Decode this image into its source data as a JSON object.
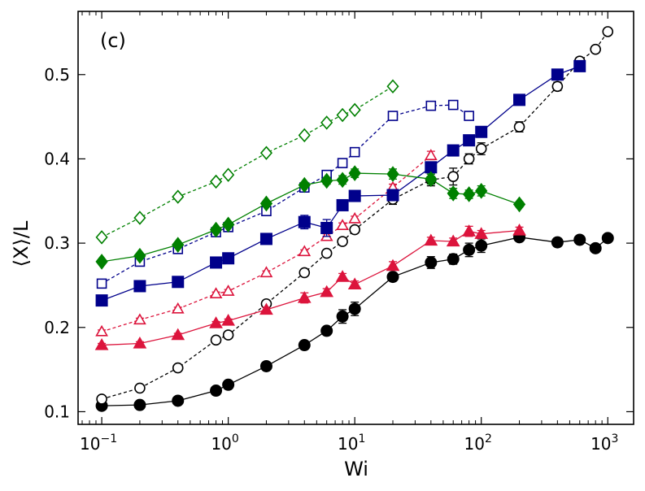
{
  "chart_data": {
    "type": "scatter",
    "panel_label": "(c)",
    "xlabel": "Wi",
    "ylabel": "⟨X⟩/L",
    "xscale": "log",
    "xlim": [
      0.065,
      1600
    ],
    "ylim": [
      0.085,
      0.575
    ],
    "grid": false,
    "legend": "none",
    "xticks": [
      {
        "value": 0.1,
        "base": "10",
        "exp": "−1"
      },
      {
        "value": 1,
        "base": "10",
        "exp": "0"
      },
      {
        "value": 10,
        "base": "10",
        "exp": "1"
      },
      {
        "value": 100,
        "base": "10",
        "exp": "2"
      },
      {
        "value": 1000,
        "base": "10",
        "exp": "3"
      }
    ],
    "yticks": [
      {
        "value": 0.1,
        "label": "0.1"
      },
      {
        "value": 0.2,
        "label": "0.2"
      },
      {
        "value": 0.3,
        "label": "0.3"
      },
      {
        "value": 0.4,
        "label": "0.4"
      },
      {
        "value": 0.5,
        "label": "0.5"
      }
    ],
    "series": [
      {
        "color": "#000000",
        "marker": "circle",
        "filled": true,
        "dashed": false,
        "x": [
          0.1,
          0.2,
          0.4,
          0.8,
          1,
          2,
          4,
          6,
          8,
          10,
          20,
          40,
          60,
          80,
          100,
          200,
          400,
          600,
          800,
          1000
        ],
        "y": [
          0.107,
          0.108,
          0.113,
          0.125,
          0.132,
          0.154,
          0.179,
          0.196,
          0.213,
          0.222,
          0.26,
          0.277,
          0.281,
          0.292,
          0.297,
          0.307,
          0.301,
          0.304,
          0.294,
          0.306
        ],
        "err": [
          0.003,
          0.002,
          0.002,
          0.003,
          0.003,
          0.003,
          0.003,
          0.004,
          0.008,
          0.008,
          0.005,
          0.007,
          0.006,
          0.008,
          0.008,
          0.004,
          0.005,
          0.004,
          0.004,
          0.004
        ]
      },
      {
        "color": "#000000",
        "marker": "circle",
        "filled": false,
        "dashed": true,
        "x": [
          0.1,
          0.2,
          0.4,
          0.8,
          1,
          2,
          4,
          6,
          8,
          10,
          20,
          40,
          60,
          80,
          100,
          200,
          400,
          600,
          800,
          1000
        ],
        "y": [
          0.115,
          0.128,
          0.152,
          0.185,
          0.191,
          0.228,
          0.265,
          0.288,
          0.302,
          0.316,
          0.352,
          0.375,
          0.379,
          0.4,
          0.412,
          0.438,
          0.486,
          0.516,
          0.53,
          0.551
        ],
        "err": [
          0.002,
          0.002,
          0.002,
          0.002,
          0.002,
          0.002,
          0.002,
          0.003,
          0.003,
          0.003,
          0.006,
          0.007,
          0.01,
          0.006,
          0.007,
          0.006,
          0.005,
          0.004,
          0.004,
          0.004
        ]
      },
      {
        "color": "#dc143c",
        "marker": "triangle",
        "filled": true,
        "dashed": false,
        "x": [
          0.1,
          0.2,
          0.4,
          0.8,
          1,
          2,
          4,
          6,
          8,
          10,
          20,
          40,
          60,
          80,
          100,
          200
        ],
        "y": [
          0.179,
          0.181,
          0.191,
          0.205,
          0.208,
          0.221,
          0.235,
          0.242,
          0.26,
          0.251,
          0.273,
          0.303,
          0.302,
          0.314,
          0.311,
          0.315
        ],
        "err": [
          0.002,
          0.002,
          0.002,
          0.002,
          0.002,
          0.003,
          0.006,
          0.004,
          0.004,
          0.004,
          0.005,
          0.004,
          0.004,
          0.006,
          0.004,
          0.004
        ]
      },
      {
        "color": "#dc143c",
        "marker": "triangle",
        "filled": false,
        "dashed": true,
        "x": [
          0.1,
          0.2,
          0.4,
          0.8,
          1,
          2,
          4,
          6,
          8,
          10,
          20,
          40
        ],
        "y": [
          0.195,
          0.209,
          0.222,
          0.24,
          0.243,
          0.265,
          0.29,
          0.308,
          0.321,
          0.329,
          0.366,
          0.404
        ],
        "err": [
          0.002,
          0.002,
          0.002,
          0.002,
          0.002,
          0.002,
          0.002,
          0.003,
          0.003,
          0.003,
          0.004,
          0.005
        ]
      },
      {
        "color": "#00008b",
        "marker": "square",
        "filled": true,
        "dashed": false,
        "x": [
          0.1,
          0.2,
          0.4,
          0.8,
          1,
          2,
          4,
          6,
          8,
          10,
          20,
          40,
          60,
          80,
          100,
          200,
          400,
          600
        ],
        "y": [
          0.232,
          0.249,
          0.254,
          0.277,
          0.282,
          0.305,
          0.325,
          0.318,
          0.345,
          0.356,
          0.357,
          0.39,
          0.41,
          0.422,
          0.432,
          0.47,
          0.5,
          0.51
        ],
        "err": [
          0.002,
          0.002,
          0.002,
          0.003,
          0.003,
          0.003,
          0.008,
          0.01,
          0.006,
          0.004,
          0.004,
          0.006,
          0.004,
          0.006,
          0.006,
          0.004,
          0.005,
          0.004
        ]
      },
      {
        "color": "#00008b",
        "marker": "square",
        "filled": false,
        "dashed": true,
        "x": [
          0.1,
          0.2,
          0.4,
          0.8,
          1,
          2,
          4,
          6,
          8,
          10,
          20,
          40,
          60,
          80
        ],
        "y": [
          0.252,
          0.278,
          0.293,
          0.313,
          0.319,
          0.338,
          0.366,
          0.381,
          0.395,
          0.408,
          0.451,
          0.463,
          0.464,
          0.451
        ],
        "err": [
          0.002,
          0.002,
          0.002,
          0.002,
          0.002,
          0.002,
          0.002,
          0.002,
          0.002,
          0.002,
          0.002,
          0.002,
          0.002,
          0.002
        ]
      },
      {
        "color": "#008000",
        "marker": "diamond",
        "filled": true,
        "dashed": false,
        "x": [
          0.1,
          0.2,
          0.4,
          0.8,
          1,
          2,
          4,
          6,
          8,
          10,
          20,
          40,
          60,
          80,
          100,
          200
        ],
        "y": [
          0.278,
          0.285,
          0.298,
          0.316,
          0.322,
          0.347,
          0.369,
          0.374,
          0.375,
          0.383,
          0.382,
          0.376,
          0.359,
          0.358,
          0.362,
          0.346
        ],
        "err": [
          0.002,
          0.002,
          0.002,
          0.002,
          0.002,
          0.002,
          0.003,
          0.004,
          0.005,
          0.005,
          0.006,
          0.006,
          0.006,
          0.005,
          0.006,
          0.003
        ]
      },
      {
        "color": "#008000",
        "marker": "diamond",
        "filled": false,
        "dashed": true,
        "x": [
          0.1,
          0.2,
          0.4,
          0.8,
          1,
          2,
          4,
          6,
          8,
          10,
          20
        ],
        "y": [
          0.307,
          0.33,
          0.355,
          0.373,
          0.381,
          0.407,
          0.428,
          0.443,
          0.452,
          0.458,
          0.486
        ],
        "err": [
          0.002,
          0.002,
          0.002,
          0.002,
          0.002,
          0.002,
          0.002,
          0.002,
          0.002,
          0.002,
          0.002
        ]
      }
    ]
  }
}
